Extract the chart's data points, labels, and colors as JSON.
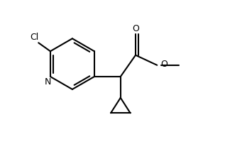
{
  "bg_color": "#ffffff",
  "lw": 1.5,
  "fs": 9,
  "xlim": [
    -0.3,
    4.8
  ],
  "ylim": [
    -0.6,
    2.9
  ],
  "figsize": [
    3.17,
    2.1
  ],
  "dpi": 100
}
